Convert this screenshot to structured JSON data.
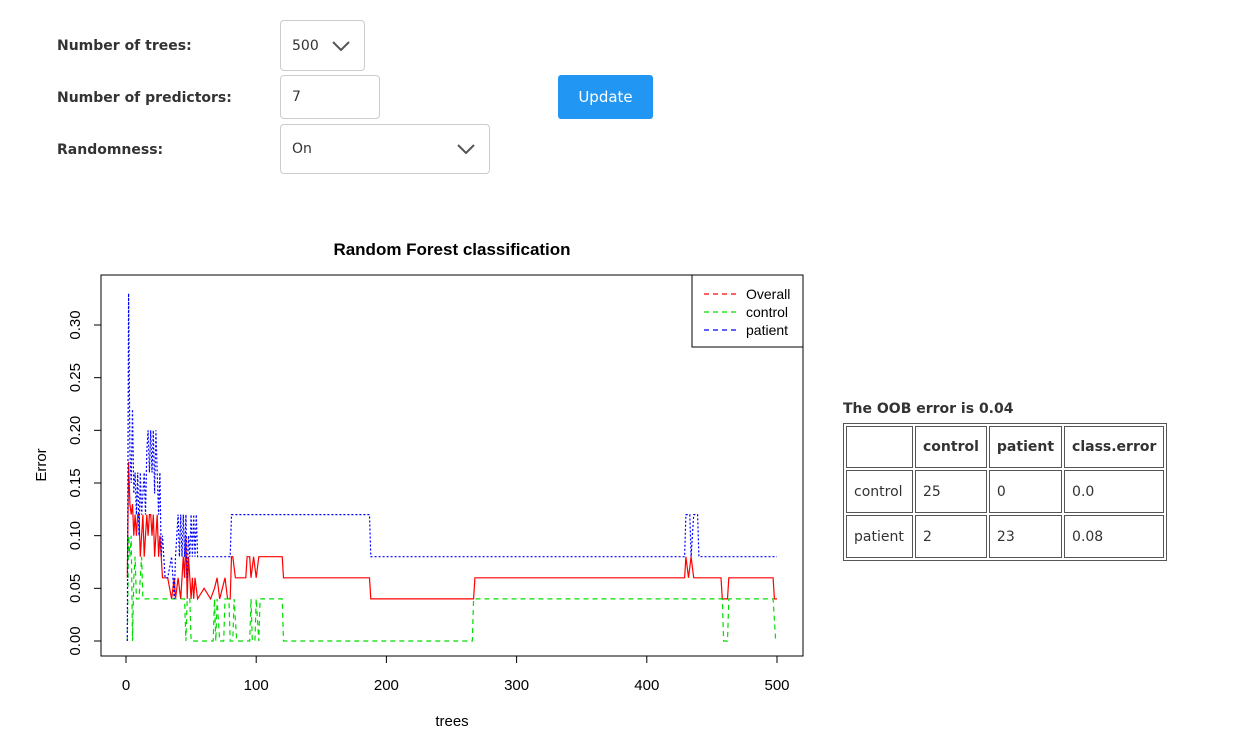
{
  "form": {
    "trees": {
      "label": "Number of trees:",
      "value": "500"
    },
    "predictors": {
      "label": "Number of predictors:",
      "value": "7"
    },
    "randomness": {
      "label": "Randomness:",
      "value": "On"
    },
    "update_label": "Update"
  },
  "colors": {
    "button": "#2196f3",
    "overall": "#ff0000",
    "control": "#00dd00",
    "patient": "#0000ff"
  },
  "chart_data": {
    "type": "line",
    "title": "Random Forest classification",
    "xlabel": "trees",
    "ylabel": "Error",
    "xlim": [
      0,
      500
    ],
    "ylim": [
      0,
      0.33
    ],
    "xticks": [
      "0",
      "100",
      "200",
      "300",
      "400",
      "500"
    ],
    "yticks": [
      "0.00",
      "0.05",
      "0.10",
      "0.15",
      "0.20",
      "0.25",
      "0.30"
    ],
    "legend_position": "top-right",
    "series": [
      {
        "name": "Overall",
        "color": "#ff0000",
        "dash": "solid",
        "points": [
          [
            1,
            0.06
          ],
          [
            2,
            0.17
          ],
          [
            3,
            0.13
          ],
          [
            4,
            0.12
          ],
          [
            5,
            0.13
          ],
          [
            6,
            0.1
          ],
          [
            7,
            0.12
          ],
          [
            8,
            0.1
          ],
          [
            9,
            0.12
          ],
          [
            10,
            0.12
          ],
          [
            11,
            0.08
          ],
          [
            12,
            0.1
          ],
          [
            13,
            0.12
          ],
          [
            14,
            0.08
          ],
          [
            15,
            0.1
          ],
          [
            16,
            0.12
          ],
          [
            17,
            0.1
          ],
          [
            18,
            0.12
          ],
          [
            19,
            0.12
          ],
          [
            20,
            0.1
          ],
          [
            21,
            0.12
          ],
          [
            22,
            0.08
          ],
          [
            23,
            0.1
          ],
          [
            24,
            0.12
          ],
          [
            25,
            0.08
          ],
          [
            26,
            0.1
          ],
          [
            27,
            0.08
          ],
          [
            28,
            0.06
          ],
          [
            30,
            0.06
          ],
          [
            32,
            0.06
          ],
          [
            35,
            0.04
          ],
          [
            37,
            0.06
          ],
          [
            38,
            0.04
          ],
          [
            40,
            0.06
          ],
          [
            42,
            0.04
          ],
          [
            43,
            0.06
          ],
          [
            44,
            0.08
          ],
          [
            45,
            0.06
          ],
          [
            46,
            0.1
          ],
          [
            47,
            0.04
          ],
          [
            48,
            0.08
          ],
          [
            49,
            0.06
          ],
          [
            50,
            0.04
          ],
          [
            51,
            0.06
          ],
          [
            52,
            0.04
          ],
          [
            53,
            0.06
          ],
          [
            55,
            0.04
          ],
          [
            60,
            0.05
          ],
          [
            65,
            0.04
          ],
          [
            68,
            0.05
          ],
          [
            70,
            0.06
          ],
          [
            72,
            0.04
          ],
          [
            76,
            0.06
          ],
          [
            78,
            0.04
          ],
          [
            80,
            0.04
          ],
          [
            81,
            0.08
          ],
          [
            82,
            0.08
          ],
          [
            84,
            0.06
          ],
          [
            92,
            0.06
          ],
          [
            93,
            0.08
          ],
          [
            95,
            0.08
          ],
          [
            96,
            0.06
          ],
          [
            98,
            0.08
          ],
          [
            100,
            0.06
          ],
          [
            102,
            0.08
          ],
          [
            120,
            0.08
          ],
          [
            121,
            0.06
          ],
          [
            187,
            0.06
          ],
          [
            188,
            0.04
          ],
          [
            267,
            0.04
          ],
          [
            268,
            0.06
          ],
          [
            429,
            0.06
          ],
          [
            430,
            0.08
          ],
          [
            432,
            0.06
          ],
          [
            434,
            0.08
          ],
          [
            436,
            0.06
          ],
          [
            457,
            0.06
          ],
          [
            458,
            0.04
          ],
          [
            462,
            0.04
          ],
          [
            463,
            0.06
          ],
          [
            497,
            0.06
          ],
          [
            498,
            0.04
          ],
          [
            500,
            0.04
          ]
        ]
      },
      {
        "name": "control",
        "color": "#00dd00",
        "dash": "dashed",
        "points": [
          [
            1,
            0
          ],
          [
            2,
            0.1
          ],
          [
            3,
            0.08
          ],
          [
            4,
            0.1
          ],
          [
            5,
            0
          ],
          [
            6,
            0.06
          ],
          [
            7,
            0.08
          ],
          [
            8,
            0.04
          ],
          [
            10,
            0.04
          ],
          [
            12,
            0.08
          ],
          [
            13,
            0.04
          ],
          [
            45,
            0.04
          ],
          [
            46,
            0
          ],
          [
            47,
            0.04
          ],
          [
            49,
            0.04
          ],
          [
            50,
            0
          ],
          [
            67,
            0
          ],
          [
            68,
            0.04
          ],
          [
            69,
            0
          ],
          [
            70,
            0.04
          ],
          [
            72,
            0
          ],
          [
            75,
            0
          ],
          [
            76,
            0.04
          ],
          [
            79,
            0.04
          ],
          [
            80,
            0
          ],
          [
            82,
            0
          ],
          [
            83,
            0.04
          ],
          [
            85,
            0
          ],
          [
            95,
            0
          ],
          [
            96,
            0.04
          ],
          [
            97,
            0
          ],
          [
            99,
            0
          ],
          [
            100,
            0.04
          ],
          [
            102,
            0
          ],
          [
            103,
            0.04
          ],
          [
            120,
            0.04
          ],
          [
            121,
            0
          ],
          [
            266,
            0
          ],
          [
            267,
            0.04
          ],
          [
            458,
            0.04
          ],
          [
            459,
            0
          ],
          [
            462,
            0
          ],
          [
            463,
            0.04
          ],
          [
            497,
            0.04
          ],
          [
            499,
            0
          ],
          [
            500,
            0
          ]
        ]
      },
      {
        "name": "patient",
        "color": "#0000ff",
        "dash": "dotted",
        "points": [
          [
            1,
            0
          ],
          [
            2,
            0.33
          ],
          [
            3,
            0.18
          ],
          [
            4,
            0.15
          ],
          [
            5,
            0.22
          ],
          [
            6,
            0.14
          ],
          [
            7,
            0.16
          ],
          [
            8,
            0.12
          ],
          [
            9,
            0.16
          ],
          [
            10,
            0.1
          ],
          [
            11,
            0.16
          ],
          [
            12,
            0.12
          ],
          [
            13,
            0.14
          ],
          [
            14,
            0.16
          ],
          [
            15,
            0.12
          ],
          [
            16,
            0.18
          ],
          [
            17,
            0.2
          ],
          [
            18,
            0.16
          ],
          [
            19,
            0.2
          ],
          [
            20,
            0.16
          ],
          [
            21,
            0.2
          ],
          [
            22,
            0.14
          ],
          [
            23,
            0.2
          ],
          [
            24,
            0.16
          ],
          [
            25,
            0.12
          ],
          [
            26,
            0.16
          ],
          [
            27,
            0.08
          ],
          [
            28,
            0.1
          ],
          [
            30,
            0.06
          ],
          [
            32,
            0.06
          ],
          [
            35,
            0.08
          ],
          [
            37,
            0.04
          ],
          [
            38,
            0.08
          ],
          [
            40,
            0.12
          ],
          [
            41,
            0.08
          ],
          [
            42,
            0.12
          ],
          [
            43,
            0.08
          ],
          [
            44,
            0.12
          ],
          [
            45,
            0.08
          ],
          [
            46,
            0.12
          ],
          [
            47,
            0.06
          ],
          [
            48,
            0.1
          ],
          [
            49,
            0.08
          ],
          [
            50,
            0.12
          ],
          [
            51,
            0.08
          ],
          [
            52,
            0.12
          ],
          [
            53,
            0.08
          ],
          [
            54,
            0.12
          ],
          [
            55,
            0.08
          ],
          [
            80,
            0.08
          ],
          [
            81,
            0.12
          ],
          [
            187,
            0.12
          ],
          [
            188,
            0.08
          ],
          [
            429,
            0.08
          ],
          [
            430,
            0.12
          ],
          [
            433,
            0.12
          ],
          [
            434,
            0.08
          ],
          [
            436,
            0.12
          ],
          [
            439,
            0.12
          ],
          [
            440,
            0.08
          ],
          [
            500,
            0.08
          ]
        ]
      }
    ]
  },
  "oob": {
    "title": "The OOB error is 0.04",
    "columns": [
      "",
      "control",
      "patient",
      "class.error"
    ],
    "rows": [
      [
        "control",
        "25",
        "0",
        "0.0"
      ],
      [
        "patient",
        "2",
        "23",
        "0.08"
      ]
    ]
  }
}
